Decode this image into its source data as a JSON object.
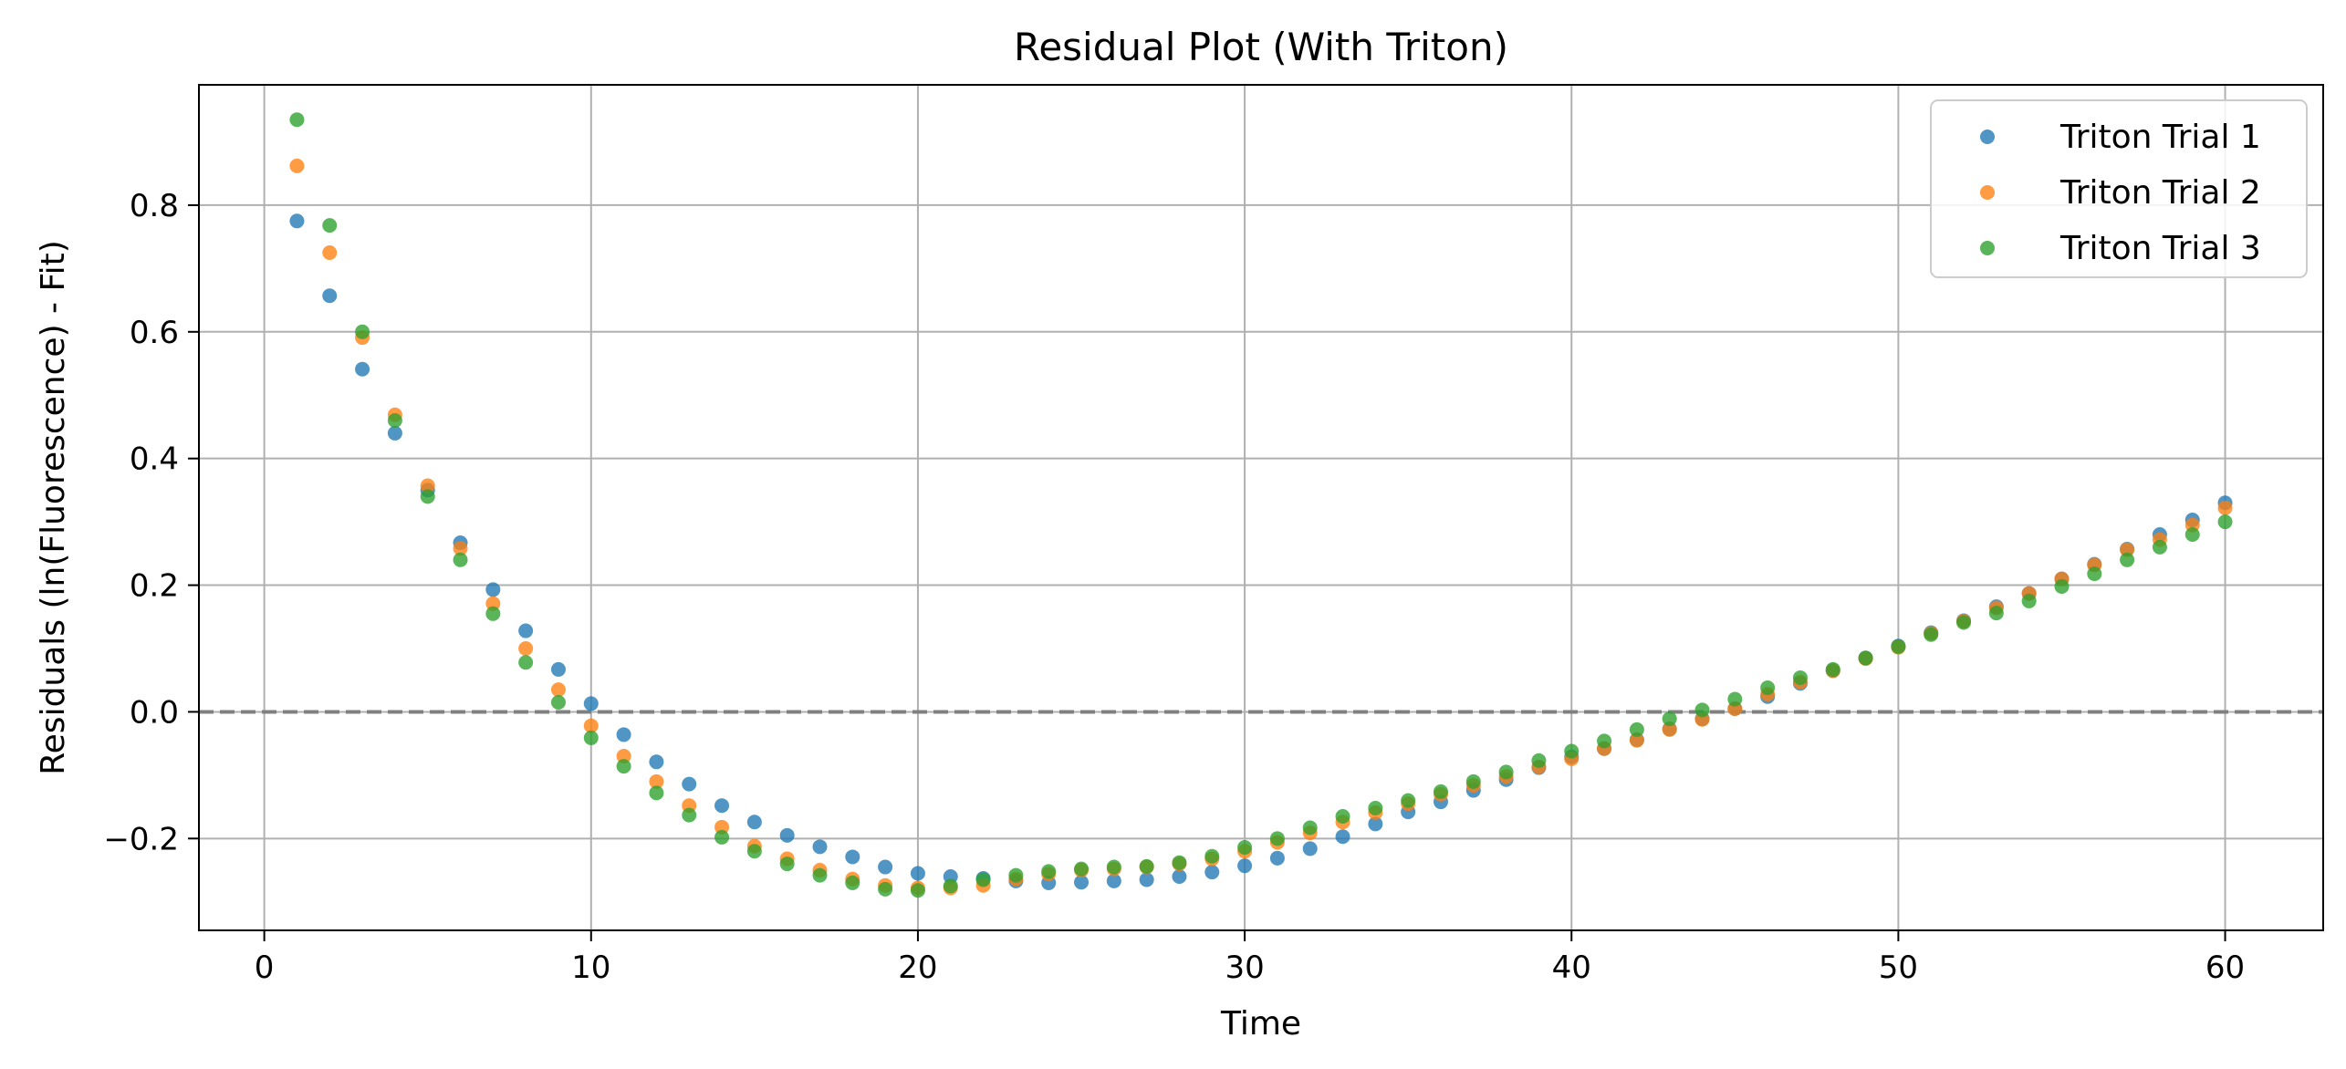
{
  "chart_data": {
    "type": "scatter",
    "title": "Residual Plot (With Triton)",
    "xlabel": "Time",
    "ylabel": "Residuals (ln(Fluorescence) - Fit)",
    "xlim": [
      -2,
      63
    ],
    "ylim": [
      -0.345,
      0.99
    ],
    "xticks": [
      0,
      10,
      20,
      30,
      40,
      50,
      60
    ],
    "xtick_labels": [
      "0",
      "10",
      "20",
      "30",
      "40",
      "50",
      "60"
    ],
    "yticks": [
      -0.2,
      0.0,
      0.2,
      0.4,
      0.6,
      0.8
    ],
    "ytick_labels": [
      "−0.2",
      "0.0",
      "0.2",
      "0.4",
      "0.6",
      "0.8"
    ],
    "grid": true,
    "reference_line": {
      "y": 0.0,
      "style": "dashed",
      "color": "#808080"
    },
    "legend_position": "top-right",
    "x": [
      1,
      2,
      3,
      4,
      5,
      6,
      7,
      8,
      9,
      10,
      11,
      12,
      13,
      14,
      15,
      16,
      17,
      18,
      19,
      20,
      21,
      22,
      23,
      24,
      25,
      26,
      27,
      28,
      29,
      30,
      31,
      32,
      33,
      34,
      35,
      36,
      37,
      38,
      39,
      40,
      41,
      42,
      43,
      44,
      45,
      46,
      47,
      48,
      49,
      50,
      51,
      52,
      53,
      54,
      55,
      56,
      57,
      58,
      59,
      60
    ],
    "series": [
      {
        "name": "Triton Trial 1",
        "color": "#1f77b4",
        "values": [
          0.775,
          0.657,
          0.541,
          0.44,
          0.35,
          0.267,
          0.193,
          0.128,
          0.067,
          0.013,
          -0.036,
          -0.079,
          -0.114,
          -0.148,
          -0.174,
          -0.195,
          -0.213,
          -0.229,
          -0.245,
          -0.255,
          -0.26,
          -0.263,
          -0.267,
          -0.27,
          -0.269,
          -0.267,
          -0.265,
          -0.26,
          -0.253,
          -0.243,
          -0.231,
          -0.216,
          -0.197,
          -0.177,
          -0.158,
          -0.142,
          -0.124,
          -0.107,
          -0.088,
          -0.071,
          -0.058,
          -0.044,
          -0.027,
          -0.011,
          0.005,
          0.024,
          0.045,
          0.065,
          0.085,
          0.104,
          0.125,
          0.144,
          0.166,
          0.187,
          0.21,
          0.233,
          0.257,
          0.28,
          0.303,
          0.33
        ]
      },
      {
        "name": "Triton Trial 2",
        "color": "#ff7f0e",
        "values": [
          0.862,
          0.725,
          0.591,
          0.469,
          0.357,
          0.258,
          0.171,
          0.1,
          0.035,
          -0.022,
          -0.07,
          -0.11,
          -0.148,
          -0.182,
          -0.212,
          -0.232,
          -0.25,
          -0.264,
          -0.274,
          -0.278,
          -0.278,
          -0.274,
          -0.264,
          -0.256,
          -0.25,
          -0.248,
          -0.245,
          -0.24,
          -0.232,
          -0.22,
          -0.206,
          -0.191,
          -0.174,
          -0.159,
          -0.145,
          -0.13,
          -0.116,
          -0.102,
          -0.087,
          -0.074,
          -0.058,
          -0.045,
          -0.028,
          -0.012,
          0.005,
          0.028,
          0.047,
          0.065,
          0.084,
          0.102,
          0.124,
          0.143,
          0.164,
          0.187,
          0.21,
          0.232,
          0.256,
          0.272,
          0.295,
          0.322
        ]
      },
      {
        "name": "Triton Trial 3",
        "color": "#2ca02c",
        "values": [
          0.935,
          0.768,
          0.6,
          0.46,
          0.34,
          0.24,
          0.155,
          0.078,
          0.015,
          -0.041,
          -0.086,
          -0.128,
          -0.163,
          -0.198,
          -0.22,
          -0.24,
          -0.258,
          -0.27,
          -0.28,
          -0.282,
          -0.275,
          -0.265,
          -0.258,
          -0.252,
          -0.248,
          -0.245,
          -0.244,
          -0.238,
          -0.228,
          -0.214,
          -0.2,
          -0.183,
          -0.165,
          -0.152,
          -0.14,
          -0.126,
          -0.11,
          -0.095,
          -0.077,
          -0.062,
          -0.046,
          -0.028,
          -0.011,
          0.003,
          0.02,
          0.038,
          0.054,
          0.067,
          0.085,
          0.103,
          0.122,
          0.141,
          0.156,
          0.175,
          0.198,
          0.218,
          0.24,
          0.26,
          0.28,
          0.3
        ]
      }
    ]
  }
}
